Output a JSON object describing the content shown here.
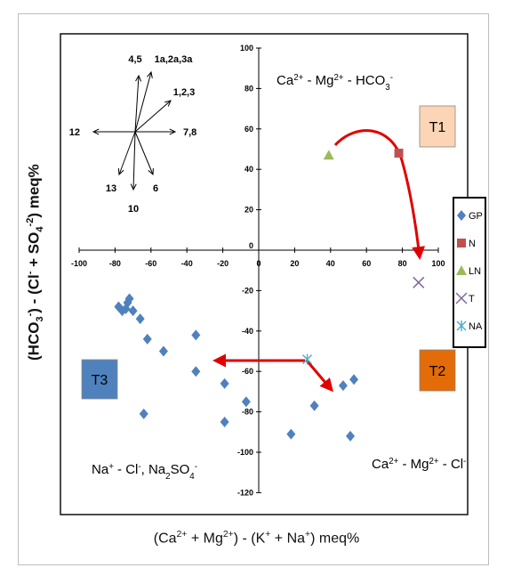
{
  "chart_data": {
    "type": "scatter",
    "title": "",
    "xlabel_parts": [
      "(Ca",
      "2+",
      " + Mg",
      "2+",
      ") -  (K",
      "+",
      " + Na",
      "+",
      ") meq%"
    ],
    "ylabel_parts": [
      "(HCO",
      "3",
      "-",
      ") -  (Cl",
      "-",
      " + SO",
      "4",
      "-2",
      ") meq%"
    ],
    "xlim": [
      -100,
      100
    ],
    "ylim": [
      -120,
      100
    ],
    "xticks": [
      "-100",
      "-80",
      "-60",
      "-40",
      "-20",
      "0",
      "20",
      "40",
      "60",
      "80",
      "100"
    ],
    "yticks": [
      "-120",
      "-100",
      "-80",
      "-60",
      "-40",
      "-20",
      "0",
      "20",
      "40",
      "60",
      "80",
      "100"
    ],
    "legend_position": "right",
    "series": [
      {
        "name": "GP",
        "marker": "diamond",
        "color": "#4f81bd",
        "points": [
          [
            -78,
            -28
          ],
          [
            -76,
            -30
          ],
          [
            -74,
            -29
          ],
          [
            -73,
            -26
          ],
          [
            -72,
            -24
          ],
          [
            -70,
            -30
          ],
          [
            -66,
            -34
          ],
          [
            -62,
            -44
          ],
          [
            -64,
            -81
          ],
          [
            -53,
            -50
          ],
          [
            -35,
            -42
          ],
          [
            -35,
            -60
          ],
          [
            -19,
            -66
          ],
          [
            -19,
            -85
          ],
          [
            -7,
            -75
          ],
          [
            18,
            -91
          ],
          [
            31,
            -77
          ],
          [
            47,
            -67
          ],
          [
            51,
            -92
          ],
          [
            53,
            -64
          ]
        ]
      },
      {
        "name": "N",
        "marker": "square",
        "color": "#c0504d",
        "points": [
          [
            78,
            48
          ]
        ]
      },
      {
        "name": "LN",
        "marker": "triangle",
        "color": "#9bbb59",
        "points": [
          [
            39,
            47
          ]
        ]
      },
      {
        "name": "T",
        "marker": "x",
        "color": "#8064a2",
        "points": [
          [
            89,
            -16
          ]
        ]
      },
      {
        "name": "NA",
        "marker": "asterisk",
        "color": "#4bacc6",
        "points": [
          [
            27,
            -54
          ]
        ]
      }
    ],
    "annotations": {
      "quad_top": {
        "parts": [
          "Ca",
          "2+",
          " - Mg",
          "2+",
          " - HCO",
          "3",
          "-"
        ]
      },
      "quad_br": {
        "parts": [
          "Ca",
          "2+",
          " - Mg",
          "2+",
          " - Cl",
          "-"
        ]
      },
      "quad_bl": {
        "parts": [
          "Na",
          "+",
          " - Cl",
          "-",
          ", Na",
          "2",
          "SO",
          "4",
          "-"
        ]
      },
      "T1": {
        "label": "T1",
        "color": "#fbd5b5"
      },
      "T2": {
        "label": "T2",
        "color": "#e36c09"
      },
      "T3": {
        "label": "T3",
        "color": "#4f81bd"
      }
    },
    "compass": {
      "labels": [
        "4,5",
        "1a,2a,3a",
        "1,2,3",
        "7,8",
        "6",
        "10",
        "13",
        "12"
      ]
    },
    "arrow_color": "#e00000"
  }
}
